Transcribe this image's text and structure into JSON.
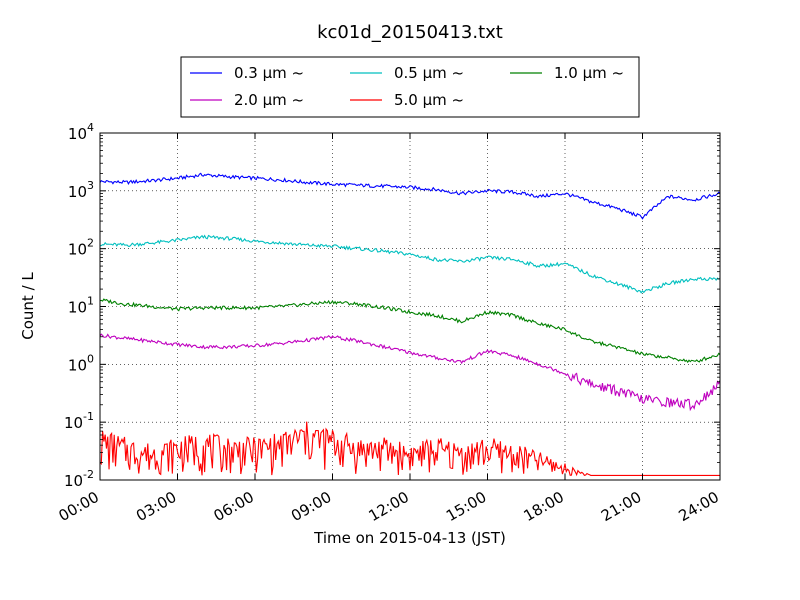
{
  "chart_data": {
    "type": "line",
    "title": "kc01d_20150413.txt",
    "xlabel": "Time on 2015-04-13 (JST)",
    "ylabel": "Count / L",
    "yscale": "log",
    "ylim": [
      0.01,
      10000
    ],
    "xlim": [
      "00:00",
      "24:00"
    ],
    "grid": true,
    "legend_position": "top-center, above plot",
    "x_ticks": [
      "00:00",
      "03:00",
      "06:00",
      "09:00",
      "12:00",
      "15:00",
      "18:00",
      "21:00",
      "24:00"
    ],
    "y_ticks": [
      {
        "base": "10",
        "exp": "-2"
      },
      {
        "base": "10",
        "exp": "-1"
      },
      {
        "base": "10",
        "exp": "0"
      },
      {
        "base": "10",
        "exp": "1"
      },
      {
        "base": "10",
        "exp": "2"
      },
      {
        "base": "10",
        "exp": "3"
      },
      {
        "base": "10",
        "exp": "4"
      }
    ],
    "x_hours": [
      0,
      1,
      2,
      3,
      4,
      5,
      6,
      7,
      8,
      9,
      10,
      11,
      12,
      13,
      14,
      15,
      16,
      17,
      18,
      19,
      20,
      21,
      22,
      23,
      24
    ],
    "series": [
      {
        "name": "0.3 μm ~",
        "color": "#0000ff",
        "values": [
          1450,
          1400,
          1500,
          1650,
          1900,
          1750,
          1650,
          1550,
          1400,
          1300,
          1250,
          1200,
          1150,
          1050,
          900,
          1000,
          950,
          800,
          900,
          650,
          500,
          350,
          800,
          700,
          900
        ]
      },
      {
        "name": "0.5 μm ~",
        "color": "#00bfbf",
        "values": [
          120,
          115,
          125,
          140,
          160,
          150,
          135,
          125,
          115,
          110,
          100,
          90,
          80,
          65,
          60,
          70,
          65,
          50,
          55,
          35,
          25,
          18,
          25,
          30,
          30
        ]
      },
      {
        "name": "1.0 μm ~",
        "color": "#008000",
        "values": [
          13,
          11,
          10,
          9,
          9.5,
          9.5,
          9.5,
          10,
          11,
          12,
          11,
          9.5,
          8,
          7,
          5.5,
          8,
          7,
          5,
          4,
          2.5,
          2,
          1.5,
          1.3,
          1.1,
          1.5
        ]
      },
      {
        "name": "2.0 μm ~",
        "color": "#bf00bf",
        "values": [
          3.2,
          2.8,
          2.5,
          2.2,
          2.0,
          2.0,
          2.1,
          2.3,
          2.6,
          3.0,
          2.5,
          2.0,
          1.6,
          1.3,
          1.1,
          1.7,
          1.4,
          1.0,
          0.7,
          0.45,
          0.35,
          0.25,
          0.22,
          0.2,
          0.45
        ]
      },
      {
        "name": "5.0 μm ~",
        "color": "#ff0000",
        "values": [
          0.04,
          0.03,
          0.025,
          0.03,
          0.035,
          0.03,
          0.03,
          0.035,
          0.05,
          0.04,
          0.03,
          0.03,
          0.025,
          0.03,
          0.025,
          0.03,
          0.025,
          0.02,
          0.015,
          0.012,
          0.012,
          0.012,
          0.012,
          0.012,
          0.012
        ]
      }
    ]
  }
}
